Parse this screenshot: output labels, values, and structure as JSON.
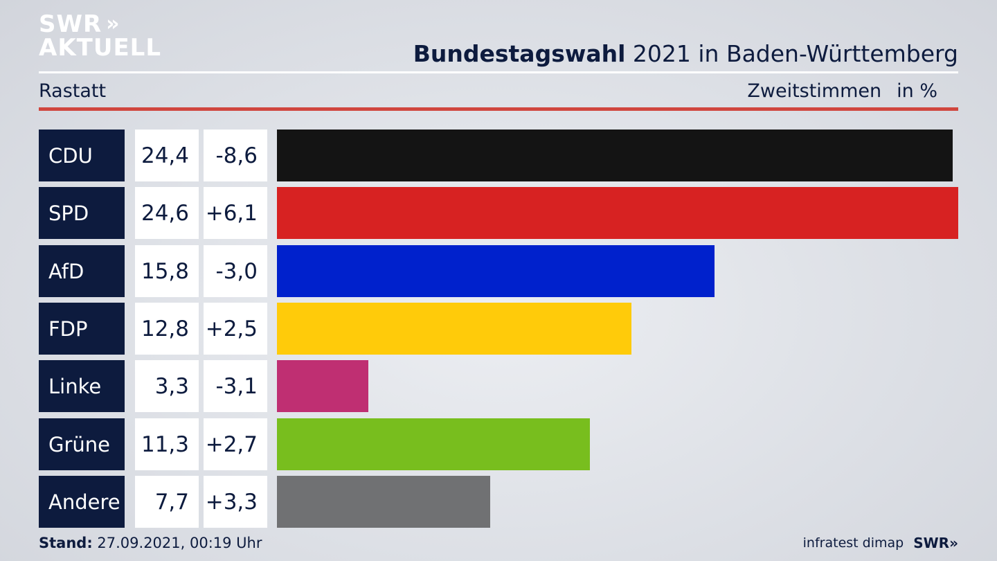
{
  "brand": {
    "line1": "SWR",
    "line2": "AKTUELL",
    "chevrons": "»"
  },
  "header": {
    "title_bold": "Bundestagswahl",
    "title_rest": " 2021 in Baden-Württemberg",
    "region": "Rastatt",
    "metric": "Zweitstimmen",
    "unit": "in %"
  },
  "chart_data": {
    "type": "bar",
    "title": "Bundestagswahl 2021 in Baden-Württemberg",
    "subtitle": "Rastatt",
    "xlabel": "Zweitstimmen",
    "ylabel": "in %",
    "categories": [
      "CDU",
      "SPD",
      "AfD",
      "FDP",
      "Linke",
      "Grüne",
      "Andere"
    ],
    "values": [
      24.4,
      24.6,
      15.8,
      12.8,
      3.3,
      11.3,
      7.7
    ],
    "value_labels": [
      "24,4",
      "24,6",
      "15,8",
      "12,8",
      "3,3",
      "11,3",
      "7,7"
    ],
    "diff_labels": [
      "-8,6",
      "+6,1",
      "-3,0",
      "+2,5",
      "-3,1",
      "+2,7",
      "+3,3"
    ],
    "colors": [
      "#141414",
      "#d72222",
      "#0021cc",
      "#ffcb0a",
      "#bf2f72",
      "#78be1e",
      "#707173"
    ],
    "xlim": [
      0,
      24.6
    ]
  },
  "footer": {
    "stand_label": "Stand:",
    "stand_value": " 27.09.2021, 00:19 Uhr",
    "source": "infratest dimap",
    "logo": "SWR»"
  }
}
